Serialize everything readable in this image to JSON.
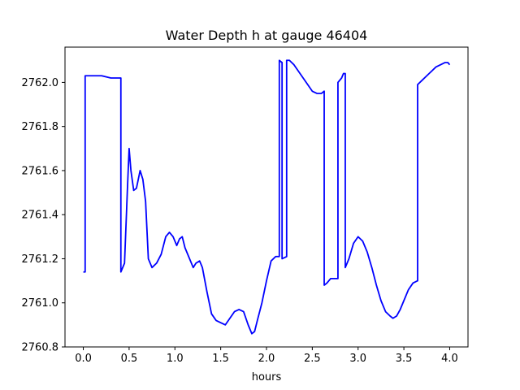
{
  "chart_data": {
    "type": "line",
    "title": "Water Depth h at gauge 46404",
    "xlabel": "hours",
    "ylabel": "",
    "xlim": [
      -0.2,
      4.2
    ],
    "ylim": [
      2760.8,
      2762.16
    ],
    "xticks": [
      0.0,
      0.5,
      1.0,
      1.5,
      2.0,
      2.5,
      3.0,
      3.5,
      4.0
    ],
    "xtick_labels": [
      "0.0",
      "0.5",
      "1.0",
      "1.5",
      "2.0",
      "2.5",
      "3.0",
      "3.5",
      "4.0"
    ],
    "yticks": [
      2760.8,
      2761.0,
      2761.2,
      2761.4,
      2761.6,
      2761.8,
      2762.0
    ],
    "ytick_labels": [
      "2760.8",
      "2761.0",
      "2761.2",
      "2761.4",
      "2761.6",
      "2761.8",
      "2762.0"
    ],
    "grid": false,
    "series": [
      {
        "color": "#0000ff",
        "x": [
          0.0,
          0.02,
          0.02,
          0.2,
          0.3,
          0.35,
          0.41,
          0.41,
          0.45,
          0.48,
          0.5,
          0.52,
          0.55,
          0.58,
          0.62,
          0.65,
          0.68,
          0.71,
          0.75,
          0.8,
          0.85,
          0.9,
          0.94,
          0.98,
          1.02,
          1.05,
          1.08,
          1.11,
          1.15,
          1.2,
          1.23,
          1.27,
          1.3,
          1.35,
          1.4,
          1.45,
          1.5,
          1.55,
          1.6,
          1.65,
          1.7,
          1.75,
          1.8,
          1.84,
          1.87,
          1.9,
          1.95,
          2.0,
          2.05,
          2.1,
          2.12,
          2.14,
          2.14,
          2.17,
          2.17,
          2.22,
          2.22,
          2.25,
          2.3,
          2.35,
          2.4,
          2.45,
          2.5,
          2.55,
          2.6,
          2.63,
          2.63,
          2.66,
          2.7,
          2.75,
          2.78,
          2.78,
          2.82,
          2.84,
          2.86,
          2.86,
          2.9,
          2.95,
          3.0,
          3.05,
          3.1,
          3.15,
          3.2,
          3.25,
          3.3,
          3.35,
          3.38,
          3.42,
          3.46,
          3.5,
          3.55,
          3.6,
          3.65,
          3.65,
          3.7,
          3.75,
          3.8,
          3.85,
          3.9,
          3.95,
          3.98,
          4.0
        ],
        "y": [
          2761.14,
          2761.14,
          2762.03,
          2762.03,
          2762.02,
          2762.02,
          2762.02,
          2761.14,
          2761.18,
          2761.5,
          2761.7,
          2761.6,
          2761.51,
          2761.52,
          2761.6,
          2761.56,
          2761.46,
          2761.2,
          2761.16,
          2761.18,
          2761.22,
          2761.3,
          2761.32,
          2761.3,
          2761.26,
          2761.29,
          2761.3,
          2761.25,
          2761.21,
          2761.16,
          2761.18,
          2761.19,
          2761.16,
          2761.05,
          2760.95,
          2760.92,
          2760.91,
          2760.9,
          2760.93,
          2760.96,
          2760.97,
          2760.96,
          2760.9,
          2760.86,
          2760.87,
          2760.92,
          2761.0,
          2761.1,
          2761.19,
          2761.21,
          2761.21,
          2761.21,
          2762.1,
          2762.09,
          2761.2,
          2761.21,
          2762.1,
          2762.1,
          2762.08,
          2762.05,
          2762.02,
          2761.99,
          2761.96,
          2761.95,
          2761.95,
          2761.96,
          2761.08,
          2761.09,
          2761.11,
          2761.11,
          2761.11,
          2762.0,
          2762.02,
          2762.04,
          2762.04,
          2761.16,
          2761.2,
          2761.27,
          2761.3,
          2761.28,
          2761.23,
          2761.16,
          2761.08,
          2761.01,
          2760.96,
          2760.94,
          2760.93,
          2760.94,
          2760.97,
          2761.01,
          2761.06,
          2761.09,
          2761.1,
          2761.99,
          2762.01,
          2762.03,
          2762.05,
          2762.07,
          2762.08,
          2762.09,
          2762.09,
          2762.08
        ]
      }
    ]
  }
}
